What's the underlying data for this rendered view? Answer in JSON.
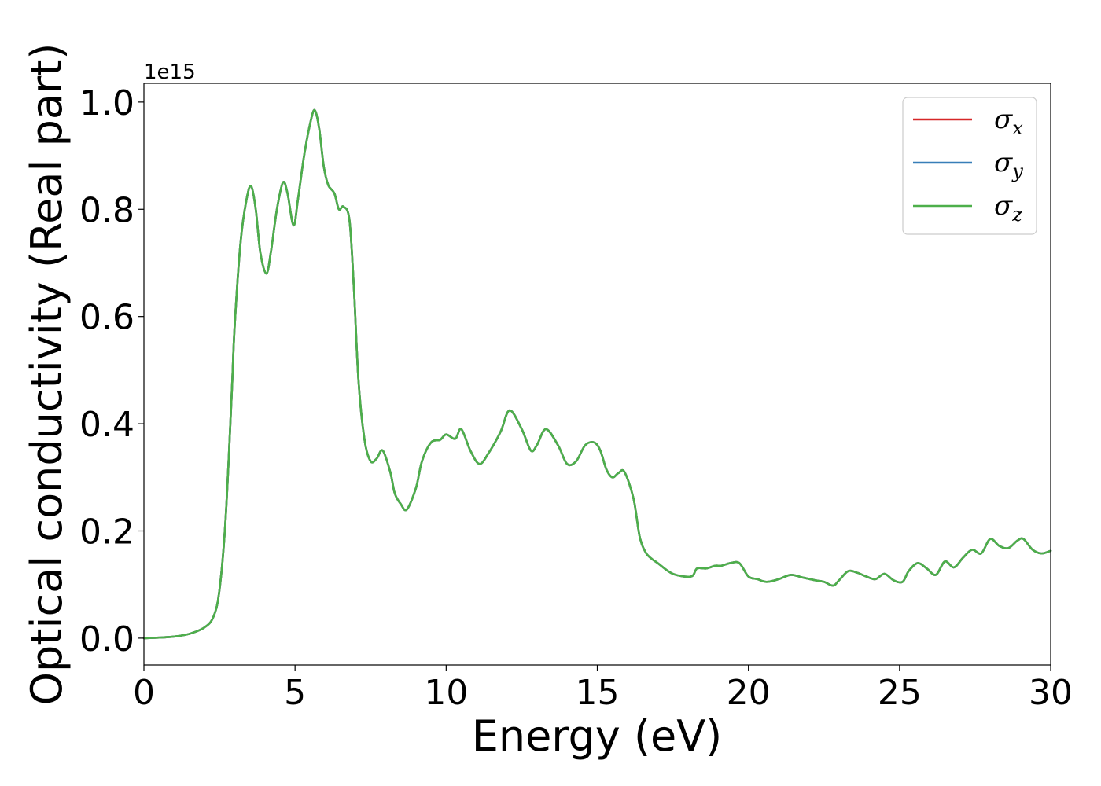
{
  "chart_data": {
    "type": "line",
    "xlabel": "Energy (eV)",
    "ylabel": "Optical conductivity (Real part)",
    "y_offset_label": "1e15",
    "xlim": [
      0,
      30
    ],
    "ylim": [
      -0.05,
      1.035
    ],
    "y_scale_factor": 1000000000000000.0,
    "x_ticks": [
      0,
      5,
      10,
      15,
      20,
      25,
      30
    ],
    "x_tick_labels": [
      "0",
      "5",
      "10",
      "15",
      "20",
      "25",
      "30"
    ],
    "y_ticks": [
      0.0,
      0.2,
      0.4,
      0.6,
      0.8,
      1.0
    ],
    "y_tick_labels": [
      "0.0",
      "0.2",
      "0.4",
      "0.6",
      "0.8",
      "1.0"
    ],
    "grid": false,
    "legend_position": "top-right",
    "series": [
      {
        "name": "σx",
        "symbol": "σ",
        "subscript": "x",
        "color": "#d62728",
        "x": [
          0,
          0.5,
          1,
          1.5,
          2,
          2.3,
          2.5,
          2.7,
          2.9,
          3.0,
          3.2,
          3.4,
          3.55,
          3.7,
          3.85,
          4.05,
          4.2,
          4.4,
          4.6,
          4.75,
          4.95,
          5.1,
          5.3,
          5.5,
          5.65,
          5.8,
          5.95,
          6.1,
          6.3,
          6.45,
          6.6,
          6.8,
          6.95,
          7.1,
          7.3,
          7.5,
          7.7,
          7.9,
          8.15,
          8.3,
          8.5,
          8.7,
          9.0,
          9.2,
          9.5,
          9.8,
          10.0,
          10.3,
          10.5,
          10.8,
          11.1,
          11.4,
          11.8,
          12.1,
          12.5,
          12.8,
          13.0,
          13.3,
          13.7,
          14.0,
          14.3,
          14.6,
          14.9,
          15.1,
          15.3,
          15.5,
          15.7,
          15.9,
          16.2,
          16.4,
          16.6,
          16.8,
          17.0,
          17.5,
          18.1,
          18.3,
          18.6,
          18.9,
          19.1,
          19.4,
          19.7,
          20.0,
          20.3,
          20.6,
          21.0,
          21.4,
          21.8,
          22.2,
          22.5,
          22.8,
          23.0,
          23.3,
          23.6,
          23.9,
          24.2,
          24.5,
          24.8,
          25.1,
          25.3,
          25.6,
          25.9,
          26.2,
          26.5,
          26.8,
          27.1,
          27.4,
          27.7,
          28.0,
          28.3,
          28.6,
          28.9,
          29.1,
          29.4,
          29.7,
          30.0
        ],
        "y": [
          0.0,
          0.001,
          0.003,
          0.008,
          0.02,
          0.04,
          0.09,
          0.22,
          0.45,
          0.58,
          0.74,
          0.82,
          0.843,
          0.8,
          0.72,
          0.68,
          0.72,
          0.8,
          0.85,
          0.83,
          0.77,
          0.82,
          0.9,
          0.96,
          0.985,
          0.95,
          0.88,
          0.845,
          0.83,
          0.8,
          0.805,
          0.78,
          0.65,
          0.48,
          0.37,
          0.33,
          0.335,
          0.35,
          0.31,
          0.27,
          0.25,
          0.24,
          0.28,
          0.33,
          0.365,
          0.37,
          0.38,
          0.372,
          0.39,
          0.35,
          0.325,
          0.345,
          0.385,
          0.425,
          0.39,
          0.35,
          0.36,
          0.39,
          0.36,
          0.325,
          0.33,
          0.36,
          0.365,
          0.35,
          0.315,
          0.3,
          0.308,
          0.31,
          0.26,
          0.19,
          0.16,
          0.148,
          0.14,
          0.12,
          0.115,
          0.13,
          0.13,
          0.135,
          0.135,
          0.14,
          0.14,
          0.115,
          0.11,
          0.105,
          0.11,
          0.118,
          0.113,
          0.108,
          0.105,
          0.098,
          0.108,
          0.125,
          0.122,
          0.115,
          0.11,
          0.12,
          0.108,
          0.105,
          0.125,
          0.14,
          0.13,
          0.118,
          0.143,
          0.132,
          0.15,
          0.165,
          0.158,
          0.185,
          0.172,
          0.168,
          0.182,
          0.185,
          0.165,
          0.158,
          0.163
        ]
      },
      {
        "name": "σy",
        "symbol": "σ",
        "subscript": "y",
        "color": "#377eb8",
        "same_as": 0
      },
      {
        "name": "σz",
        "symbol": "σ",
        "subscript": "z",
        "color": "#4daf4a",
        "same_as": 0
      }
    ]
  }
}
